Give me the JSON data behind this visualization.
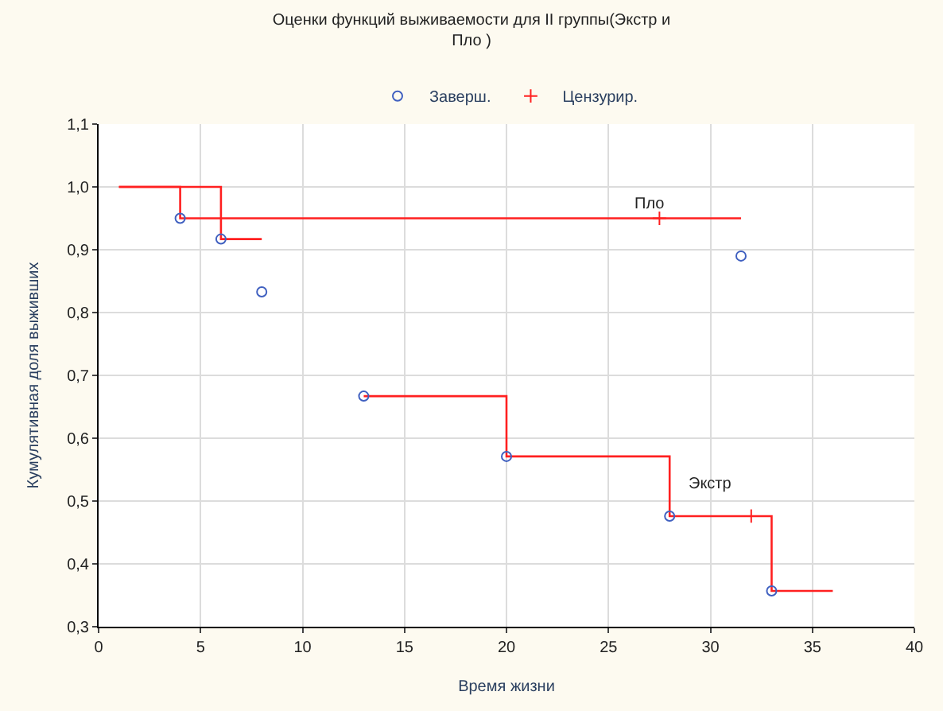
{
  "chart_data": {
    "type": "step",
    "title": "Оценки функций выживаемости для II группы(Экстр и\nПло )",
    "xlabel": "Время жизни",
    "ylabel": "Кумулятивная доля выживших",
    "xlim": [
      0,
      40
    ],
    "xticks": [
      0,
      5,
      10,
      15,
      20,
      25,
      30,
      35,
      40
    ],
    "ylim": [
      0.3,
      1.1
    ],
    "yticks": [
      {
        "value": 0.3,
        "label": "0,3"
      },
      {
        "value": 0.4,
        "label": "0,4"
      },
      {
        "value": 0.5,
        "label": "0,5"
      },
      {
        "value": 0.6,
        "label": "0,6"
      },
      {
        "value": 0.7,
        "label": "0,7"
      },
      {
        "value": 0.8,
        "label": "0,8"
      },
      {
        "value": 0.9,
        "label": "0,9"
      },
      {
        "value": 1.0,
        "label": "1,0"
      },
      {
        "value": 1.1,
        "label": "1,1"
      }
    ],
    "grid": true,
    "legend": "top",
    "series": [
      {
        "color": "#ff2020",
        "x": [
          1,
          6,
          8
        ],
        "values": [
          1.0,
          0.917,
          0.917
        ]
      },
      {
        "name": "Экстр",
        "color": "#ff2020",
        "x": [
          13,
          20,
          28,
          33,
          36
        ],
        "values": [
          0.667,
          0.571,
          0.476,
          0.357,
          0.357
        ]
      },
      {
        "name": "Пло",
        "color": "#ff2020",
        "x": [
          1,
          4,
          31.5
        ],
        "values": [
          1.0,
          0.95,
          0.95
        ]
      },
      {
        "type": "scatter",
        "name": "Заверш.",
        "color": "#4060c0",
        "marker": "circle",
        "x": [
          4,
          6,
          8,
          13,
          20,
          28,
          33,
          31.5
        ],
        "values": [
          0.95,
          0.917,
          0.833,
          0.667,
          0.571,
          0.476,
          0.357,
          0.89
        ]
      },
      {
        "type": "scatter",
        "name": "Цензурир.",
        "color": "#ff2020",
        "marker": "cross",
        "x": [
          27.5,
          32
        ],
        "values": [
          0.95,
          0.476
        ]
      }
    ]
  }
}
